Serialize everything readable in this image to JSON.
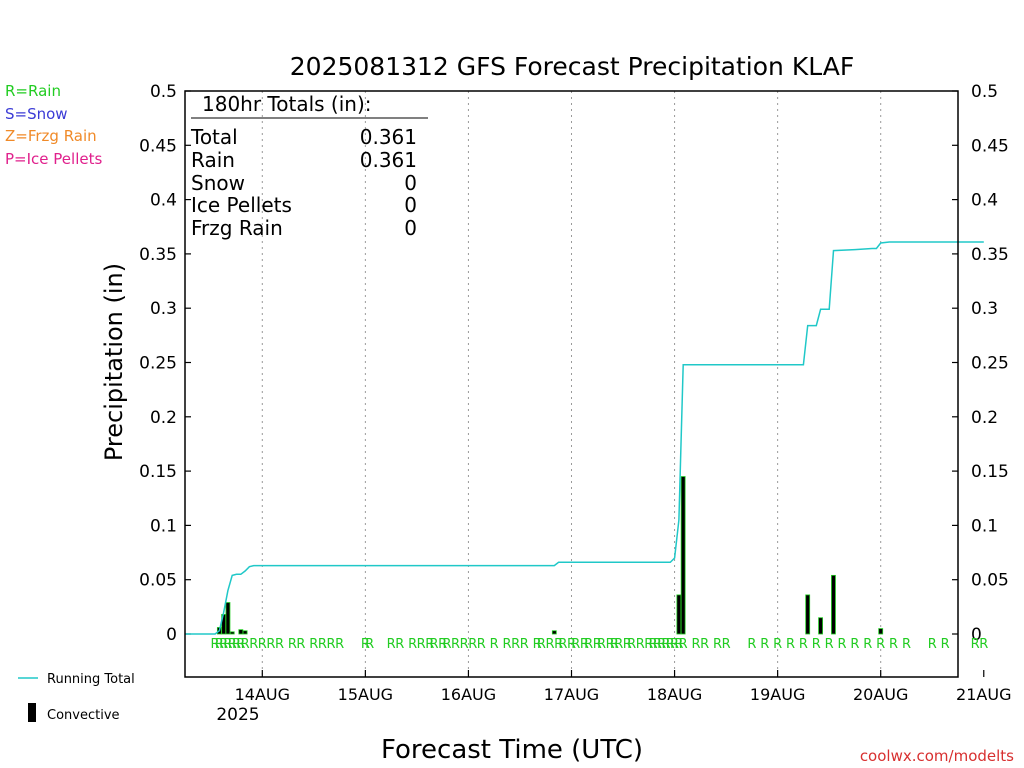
{
  "chart_data": {
    "type": "bar",
    "title": "2025081312 GFS Forecast Precipitation KLAF",
    "xlabel": "Forecast Time (UTC)",
    "ylabel": "Precipitation (in)",
    "ylim": [
      0,
      0.5
    ],
    "y_ticks": [
      "0",
      "0.05",
      "0.1",
      "0.15",
      "0.2",
      "0.25",
      "0.3",
      "0.35",
      "0.4",
      "0.45",
      "0.5"
    ],
    "x_range_hours": [
      -6,
      174
    ],
    "x_ticks": [
      {
        "label": "14AUG",
        "hour": 12
      },
      {
        "label": "15AUG",
        "hour": 36
      },
      {
        "label": "16AUG",
        "hour": 60
      },
      {
        "label": "17AUG",
        "hour": 84
      },
      {
        "label": "18AUG",
        "hour": 108
      },
      {
        "label": "19AUG",
        "hour": 132
      },
      {
        "label": "20AUG",
        "hour": 156
      },
      {
        "label": "21AUG",
        "hour": 180
      }
    ],
    "year_label": "2025",
    "grid": "vertical dotted at day boundaries",
    "legend_types": [
      {
        "text": "R=Rain",
        "color": "#22cc22"
      },
      {
        "text": "S=Snow",
        "color": "#3b3bd6"
      },
      {
        "text": "Z=Frzg Rain",
        "color": "#f08a28"
      },
      {
        "text": "P=Ice Pellets",
        "color": "#e0208c"
      }
    ],
    "legend_series": [
      {
        "text": "Running Total",
        "color": "#20c8c8"
      },
      {
        "text": "Convective",
        "color": "#000000"
      }
    ],
    "totals": {
      "header": "180hr Totals (in):",
      "rows": [
        {
          "label": "Total",
          "value": "0.361"
        },
        {
          "label": "Rain",
          "value": "0.361"
        },
        {
          "label": "Snow",
          "value": "0"
        },
        {
          "label": "Ice Pellets",
          "value": "0"
        },
        {
          "label": "Frzg Rain",
          "value": "0"
        }
      ]
    },
    "series": [
      {
        "name": "Running Total",
        "color": "#20c8c8",
        "points": [
          [
            -6,
            0
          ],
          [
            1,
            0
          ],
          [
            2,
            0.003
          ],
          [
            3,
            0.02
          ],
          [
            4,
            0.04
          ],
          [
            5,
            0.054
          ],
          [
            6,
            0.055
          ],
          [
            7,
            0.055
          ],
          [
            8,
            0.058
          ],
          [
            9,
            0.062
          ],
          [
            10,
            0.063
          ],
          [
            80,
            0.063
          ],
          [
            81,
            0.066
          ],
          [
            107,
            0.066
          ],
          [
            108,
            0.07
          ],
          [
            109,
            0.105
          ],
          [
            110,
            0.248
          ],
          [
            138,
            0.248
          ],
          [
            139,
            0.284
          ],
          [
            141,
            0.284
          ],
          [
            142,
            0.299
          ],
          [
            144,
            0.299
          ],
          [
            145,
            0.353
          ],
          [
            150,
            0.354
          ],
          [
            154,
            0.355
          ],
          [
            155,
            0.355
          ],
          [
            156,
            0.36
          ],
          [
            158,
            0.361
          ],
          [
            180,
            0.361
          ]
        ]
      },
      {
        "name": "Convective",
        "color": "#000000",
        "bars": [
          {
            "hour": 2,
            "value": 0.006
          },
          {
            "hour": 3,
            "value": 0.018
          },
          {
            "hour": 4,
            "value": 0.029
          },
          {
            "hour": 5,
            "value": 0.002
          },
          {
            "hour": 7,
            "value": 0.004
          },
          {
            "hour": 8,
            "value": 0.003
          },
          {
            "hour": 80,
            "value": 0.003
          },
          {
            "hour": 109,
            "value": 0.036
          },
          {
            "hour": 110,
            "value": 0.145
          },
          {
            "hour": 139,
            "value": 0.036
          },
          {
            "hour": 142,
            "value": 0.015
          },
          {
            "hour": 145,
            "value": 0.054
          },
          {
            "hour": 156,
            "value": 0.005
          }
        ]
      }
    ],
    "ptype_marker": "R",
    "ptype_hours": [
      1,
      2,
      3,
      4,
      5,
      6,
      7,
      8,
      10,
      12,
      14,
      16,
      19,
      21,
      24,
      26,
      28,
      30,
      36,
      37,
      42,
      44,
      47,
      49,
      51,
      52,
      54,
      55,
      57,
      59,
      61,
      63,
      66,
      69,
      71,
      73,
      76,
      77,
      79,
      81,
      82,
      84,
      85,
      87,
      88,
      90,
      91,
      93,
      94,
      95,
      97,
      98,
      100,
      102,
      103,
      104,
      105,
      106,
      107,
      108,
      109,
      110,
      113,
      115,
      118,
      120,
      126,
      129,
      132,
      135,
      138,
      141,
      144,
      147,
      150,
      153,
      156,
      159,
      162,
      168,
      171,
      178,
      180
    ],
    "source": "coolwx.com/modelts"
  }
}
